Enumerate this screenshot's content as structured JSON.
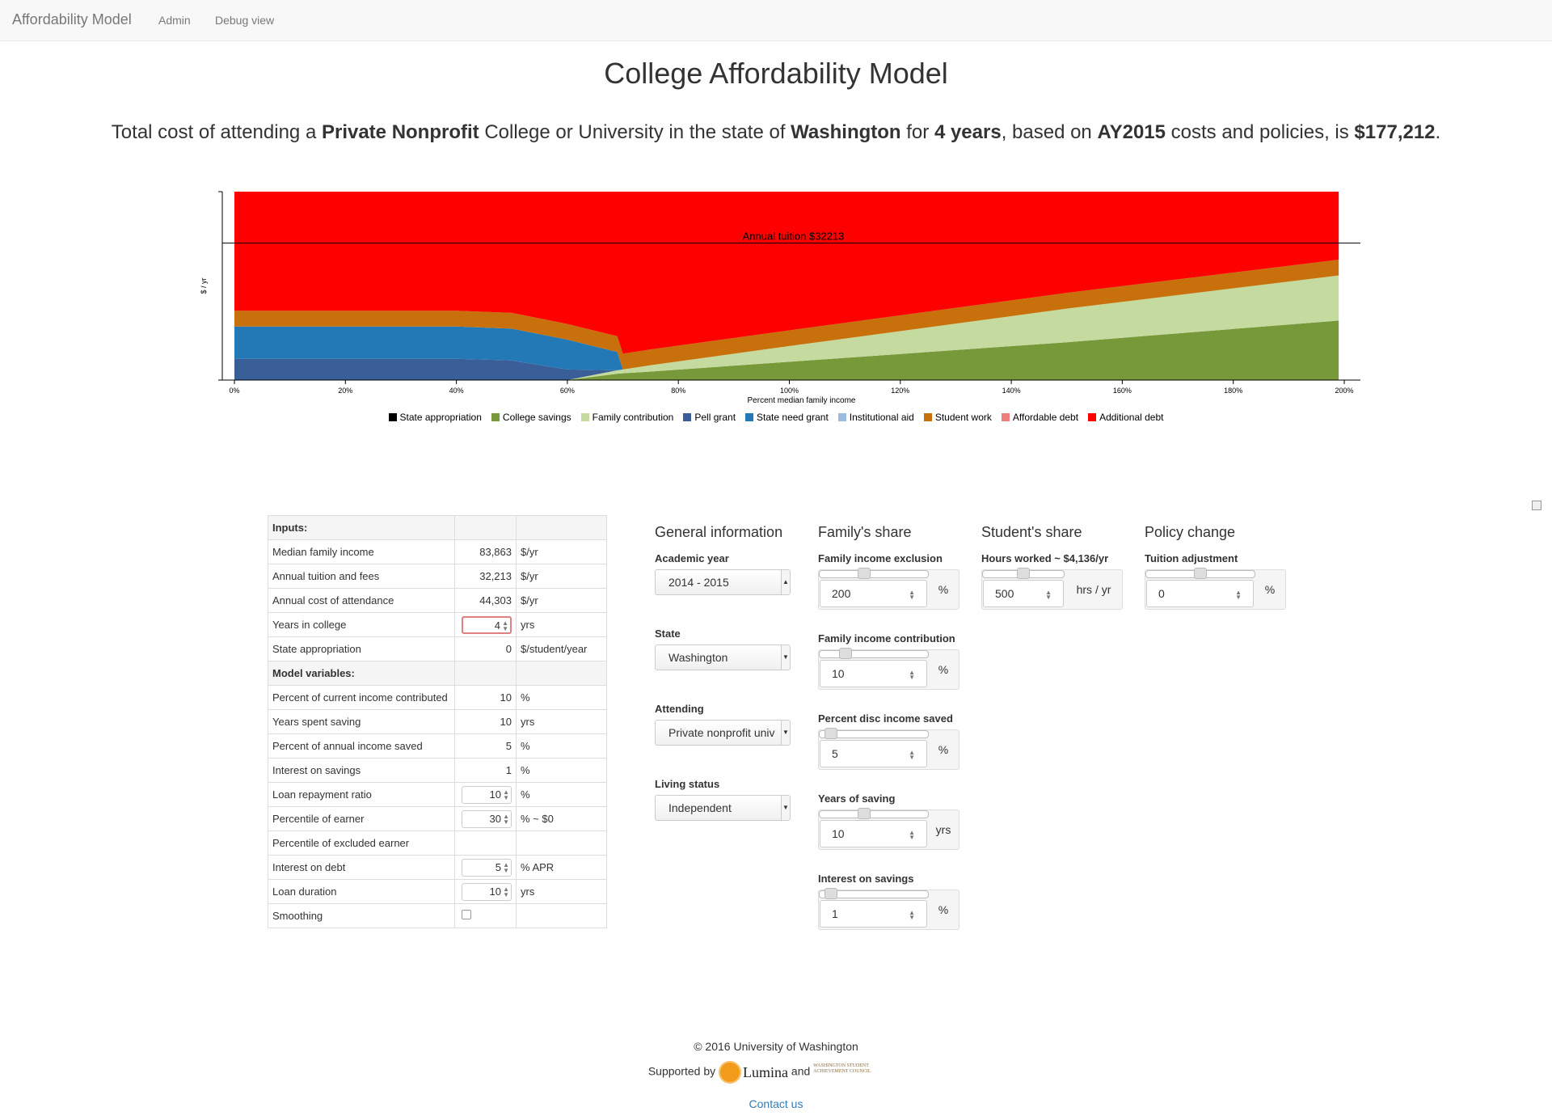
{
  "navbar": {
    "brand": "Affordability Model",
    "items": [
      "Admin",
      "Debug view"
    ]
  },
  "page_title": "College Affordability Model",
  "summary": {
    "p1": "Total cost of attending a ",
    "institution": "Private Nonprofit",
    "p2": " College or University in the state of ",
    "state": "Washington",
    "p3": " for ",
    "years": "4 years",
    "p4": ", based on ",
    "academic_year": "AY2015",
    "p5": " costs and policies, is ",
    "total": "$177,212",
    "p6": "."
  },
  "chart_data": {
    "type": "area",
    "xlabel": "Percent median family income",
    "ylabel": "$ / yr",
    "x": [
      0,
      20,
      40,
      50,
      60,
      69,
      70,
      75,
      100,
      150,
      199
    ],
    "x_ticks": [
      "0%",
      "20%",
      "40%",
      "60%",
      "80%",
      "100%",
      "120%",
      "140%",
      "160%",
      "180%",
      "200%"
    ],
    "xlim": [
      0,
      200
    ],
    "ylim": [
      0,
      44303
    ],
    "stack_order": [
      "College savings",
      "Family contribution",
      "Pell grant",
      "State need grant",
      "Student work",
      "Additional debt"
    ],
    "series": [
      {
        "name": "College savings",
        "color": "#77993a",
        "values": [
          0,
          0,
          0,
          0,
          0,
          1500,
          1600,
          2000,
          4300,
          8900,
          14000
        ]
      },
      {
        "name": "Family contribution",
        "color": "#c5da9e",
        "values": [
          0,
          0,
          0,
          0,
          0,
          800,
          900,
          1500,
          3700,
          7900,
          10600
        ]
      },
      {
        "name": "Pell grant",
        "color": "#3a5f98",
        "values": [
          5000,
          5000,
          5000,
          4600,
          2500,
          0,
          0,
          0,
          0,
          0,
          0
        ]
      },
      {
        "name": "State need grant",
        "color": "#2279b5",
        "values": [
          7600,
          7600,
          7600,
          7500,
          7000,
          4300,
          0,
          0,
          0,
          0,
          0
        ]
      },
      {
        "name": "Student work",
        "color": "#c8700c",
        "values": [
          3700,
          3700,
          3700,
          3700,
          3700,
          3700,
          3700,
          3700,
          3700,
          3700,
          3700
        ]
      },
      {
        "name": "Additional debt",
        "color": "#ff0000",
        "values": [
          28003,
          28003,
          28003,
          28503,
          31103,
          34003,
          38103,
          37103,
          32603,
          23803,
          16003
        ]
      }
    ],
    "reference_line": {
      "label": "Annual tuition $32213",
      "value": 32213
    },
    "legend": [
      {
        "name": "State appropriation",
        "color": "#000000"
      },
      {
        "name": "College savings",
        "color": "#77993a"
      },
      {
        "name": "Family contribution",
        "color": "#c5da9e"
      },
      {
        "name": "Pell grant",
        "color": "#3a5f98"
      },
      {
        "name": "State need grant",
        "color": "#2279b5"
      },
      {
        "name": "Institutional aid",
        "color": "#9bbbe0"
      },
      {
        "name": "Student work",
        "color": "#c8700c"
      },
      {
        "name": "Affordable debt",
        "color": "#ee7d7d"
      },
      {
        "name": "Additional debt",
        "color": "#ff0000"
      }
    ]
  },
  "inputs_table": {
    "inputs_header": "Inputs:",
    "rows1": [
      {
        "label": "Median family income",
        "value": "83,863",
        "unit": "$/yr"
      },
      {
        "label": "Annual tuition and fees",
        "value": "32,213",
        "unit": "$/yr"
      },
      {
        "label": "Annual cost of attendance",
        "value": "44,303",
        "unit": "$/yr"
      },
      {
        "label": "Years in college",
        "value": "4",
        "unit": "yrs"
      },
      {
        "label": "State appropriation",
        "value": "0",
        "unit": "$/student/year"
      }
    ],
    "model_header": "Model variables:",
    "rows2": [
      {
        "label": "Percent of current income contributed",
        "value": "10",
        "unit": "%"
      },
      {
        "label": "Years spent saving",
        "value": "10",
        "unit": "yrs"
      },
      {
        "label": "Percent of annual income saved",
        "value": "5",
        "unit": "%"
      },
      {
        "label": "Interest on savings",
        "value": "1",
        "unit": "%"
      },
      {
        "label": "Loan repayment ratio",
        "value": "10",
        "unit": "%"
      },
      {
        "label": "Percentile of earner",
        "value": "30",
        "unit": "% ~ $0"
      },
      {
        "label": "Percentile of excluded earner",
        "value": "",
        "unit": ""
      },
      {
        "label": "Interest on debt",
        "value": "5",
        "unit": "% APR"
      },
      {
        "label": "Loan duration",
        "value": "10",
        "unit": "yrs"
      },
      {
        "label": "Smoothing",
        "value": "",
        "unit": ""
      }
    ]
  },
  "general": {
    "title": "General information",
    "academic_year": {
      "label": "Academic year",
      "value": "2014 - 2015"
    },
    "state": {
      "label": "State",
      "value": "Washington"
    },
    "attending": {
      "label": "Attending",
      "value": "Private nonprofit univ"
    },
    "living": {
      "label": "Living status",
      "value": "Independent"
    }
  },
  "family": {
    "title": "Family's share",
    "exclusion": {
      "label": "Family income exclusion",
      "value": "200",
      "unit": "%",
      "level": 0.4
    },
    "contribution": {
      "label": "Family income contribution",
      "value": "10",
      "unit": "%",
      "level": 0.2
    },
    "saved": {
      "label": "Percent disc income saved",
      "value": "5",
      "unit": "%",
      "level": 0.05
    },
    "years": {
      "label": "Years of saving",
      "value": "10",
      "unit": "yrs",
      "level": 0.4
    },
    "interest": {
      "label": "Interest on savings",
      "value": "1",
      "unit": "%",
      "level": 0.05
    }
  },
  "student": {
    "title": "Student's share",
    "hours": {
      "label": "Hours worked ~ $4,136/yr",
      "value": "500",
      "unit": "hrs / yr",
      "level": 0.5
    }
  },
  "policy": {
    "title": "Policy change",
    "tuition": {
      "label": "Tuition adjustment",
      "value": "0",
      "unit": "%",
      "level": 0.5
    }
  },
  "footer": {
    "copyright": "© 2016 University of Washington",
    "supported_by": "Supported by",
    "lumina": "Lumina",
    "and": "and",
    "wsac": "WASHINGTON STUDENT ACHIEVEMENT COUNCIL",
    "contact": "Contact us"
  }
}
